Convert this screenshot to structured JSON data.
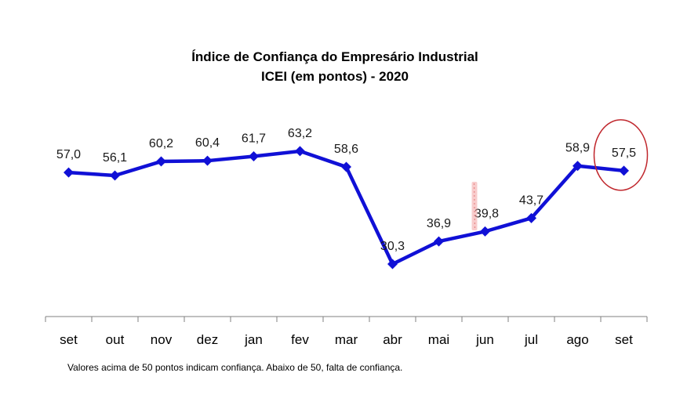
{
  "chart_data": {
    "type": "line",
    "title": "Índice de Confiança do Empresário Industrial",
    "subtitle": "ICEI (em pontos) - 2020",
    "categories": [
      "set",
      "out",
      "nov",
      "dez",
      "jan",
      "fev",
      "mar",
      "abr",
      "mai",
      "jun",
      "jul",
      "ago",
      "set"
    ],
    "values": [
      57.0,
      56.1,
      60.2,
      60.4,
      61.7,
      63.2,
      58.6,
      30.3,
      36.9,
      39.8,
      43.7,
      58.9,
      57.5
    ],
    "value_labels": [
      "57,0",
      "56,1",
      "60,2",
      "60,4",
      "61,7",
      "63,2",
      "58,6",
      "30,3",
      "36,9",
      "39,8",
      "43,7",
      "58,9",
      "57,5"
    ],
    "xlabel": "",
    "ylabel": "",
    "grid": false,
    "legend": "none",
    "line_color": "#1010d6",
    "highlight_color": "#c0272d",
    "highlight_index": 12
  },
  "footnote": "Valores acima de 50 pontos indicam confiança. Abaixo de 50, falta de confiança."
}
